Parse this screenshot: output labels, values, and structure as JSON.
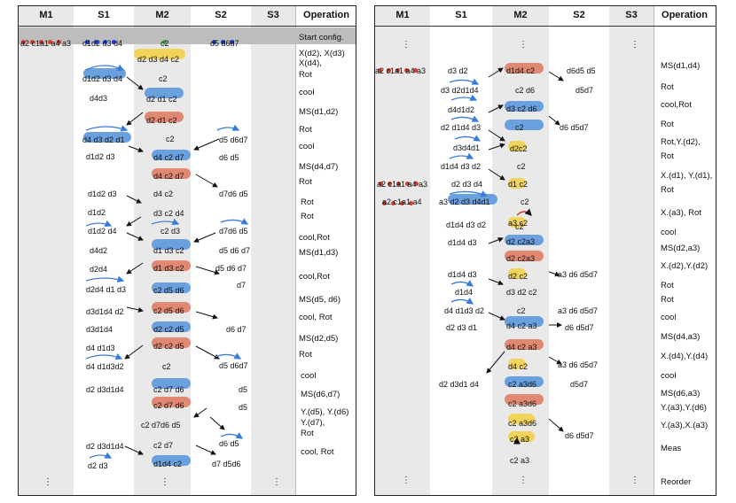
{
  "headers": [
    "M1",
    "S1",
    "M2",
    "S2",
    "S3",
    "Operation"
  ],
  "left": {
    "operations": [
      "Start config.",
      "X(d2), X(d3)",
      "X(d4),",
      "Rot",
      "cool",
      "MS(d1,d2)",
      "Rot",
      "cool",
      "MS(d4,d7)",
      "Rot",
      "Rot",
      "Rot",
      "cool,Rot",
      "MS(d1,d3)",
      "cool,Rot",
      "MS(d5, d6)",
      "cool, Rot",
      "MS(d2,d5)",
      "Rot",
      "cool",
      "MS(d6,d7)",
      "Y.(d5), Y.(d6)",
      "Y.(d7),",
      "Rot",
      "cool, Rot"
    ],
    "labels": {
      "m1_start": "a2 c1a1 a4 a3",
      "s1_start": "d1d2 d3 d4",
      "m2_start": "c2",
      "s2_start": "d5 d6d7",
      "r1_m2": "d2 d3 d4 c2",
      "r2_s1": "d1d2 d3 d4",
      "r2_m2": "c2",
      "r3_s1": "d4d3",
      "r3_m2": "d2 d1 c2",
      "r4_m2": "d2 d1 c2",
      "r5_s1": "d4 d3 d2 d1",
      "r5_m2": "c2",
      "r5_s2": "d5 d6d7",
      "r6_s1": "d1d2 d3",
      "r6_m2": "d4 c2 d7",
      "r6_s2": "d6 d5",
      "r7_m2": "d4 c2 d7",
      "r7_s2": "d7d6 d5",
      "r8_s1": "d1d2 d3",
      "r8_m2": "d4 c2",
      "r9_s1": "d1d2",
      "r9_m2": "d3 c2 d4",
      "r10_s1": "d1d2 d4",
      "r10_m2": "c2 d3",
      "r10_s2": "d7d6 d5",
      "r11_s1": "d4d2",
      "r11_m2": "d1 d3 c2",
      "r11_s2": "d5 d6 d7",
      "r12_s1": "d2d4",
      "r12_m2": "d1 d3 c2",
      "r12_s2": "d5 d6 d7",
      "r13_s1": "d2d4 d1 d3",
      "r13_m2": "c2 d5 d6",
      "r13_s2": "d7",
      "r14_s1": "d3d1d4 d2",
      "r14_m2": "c2 d5 d6",
      "r15_s1": "d3d1d4",
      "r15_m2": "d2 c2 d5",
      "r15_s2": "d6 d7",
      "r16_s1": "d4 d1d3",
      "r16_m2": "d2 c2 d5",
      "r17_s1": "d4 d1d3d2",
      "r17_m2": "c2",
      "r17_s2": "d5 d6d7",
      "r18_s1": "d2 d3d1d4",
      "r18_m2": "c2 d7 d6",
      "r18_s2": "d5",
      "r19_m2": "c2 d7 d6",
      "r19_s2": "d5",
      "r20_m2": "c2 d7d6 d5",
      "r21_s1": "d2 d3d1d4",
      "r21_m2": "c2 d7",
      "r21_s2": "d6 d5",
      "r22_s1": "d2 d3",
      "r22_m2": "d1d4 c2",
      "r22_s2": "d7 d5d6"
    }
  },
  "right": {
    "operations": [
      "MS(d1,d4)",
      "Rot",
      "cool,Rot",
      "Rot",
      "Rot,Y.(d2),",
      "Rot",
      "X.(d1), Y.(d1),",
      "Rot",
      "X.(a3), Rot",
      "cool",
      "MS(d2,a3)",
      "X.(d2),Y.(d2)",
      "Rot",
      "Rot",
      "cool",
      "MS(d4,a3)",
      "X.(d4),Y.(d4)",
      "cool",
      "MS(d6,a3)",
      "Y.(a3),Y.(d6)",
      "Y.(a3),X.(a3)",
      "Meas",
      "Reorder"
    ],
    "labels": {
      "r0_m1": "a2 c1a1 a4 a3",
      "r0_s1": "d3 d2",
      "r0_m2": "d1d4 c2",
      "r0_s2": "d6d5 d5",
      "r1_s1": "d3 d2d1d4",
      "r1_m2": "c2 d6",
      "r1_s2": "d5d7",
      "r2_s1": "d4d1d2",
      "r2_m2": "d3 c2 d6",
      "r3_s1": "d2 d1d4 d3",
      "r3_m2": "c2",
      "r3_s2": "d6 d5d7",
      "r4_s1": "d3d4d1",
      "r4_m2": "d2c2",
      "r5_s1": "d1d4 d3 d2",
      "r5_m2": "c2",
      "r6_m1": "a2 c1a1 a4 a3",
      "r6_s1": "d2 d3 d4",
      "r6_m2": "d1 c2",
      "r7_m1": "a2 c1a1 a4",
      "r7_s1": "a3 d2 d3 d4d1",
      "r7_m2": "c2",
      "r8_m2": "a3 c2",
      "r9_s1": "d1d4 d3 d2",
      "r9_m2": "c2",
      "r10_s1": "d1d4 d3",
      "r10_m2": "d2 c2a3",
      "r11_m2": "d2 c2a3",
      "r12_s1": "d1d4 d3",
      "r12_m2": "d2 c2",
      "r12_s2": "a3 d6 d5d7",
      "r13_s1": "d1d4",
      "r13_m2": "d3 d2 c2",
      "r14_s1": "d4 d1d3 d2",
      "r14_m2": "c2",
      "r14_s2": "a3 d6 d5d7",
      "r15_s1": "d2 d3 d1",
      "r15_m2": "d4 c2 a3",
      "r15_s2": "d6 d5d7",
      "r16_m2": "d4 c2 a3",
      "r17_m2": "d4 c2",
      "r17_s2": "a3 d6 d5d7",
      "r18_s1": "d2 d3d1 d4",
      "r18_m2": "c2 a3d6",
      "r18_s2": "d5d7",
      "r19_m2": "c2 a3d6",
      "r20_m2": "c2 a3d6",
      "r21_m2": "c2 a3",
      "r21_s2": "d6 d5d7",
      "r22_m2": "c2 a3"
    }
  },
  "colors": {
    "ion_blue": "#1b3fd6",
    "ion_red": "#d93a2b",
    "ion_green": "#3aa83a",
    "zone_blue": "#6ba0de",
    "zone_red": "#e08872",
    "zone_yellow": "#f3d35a",
    "column_shade": "#e9e9e9"
  }
}
